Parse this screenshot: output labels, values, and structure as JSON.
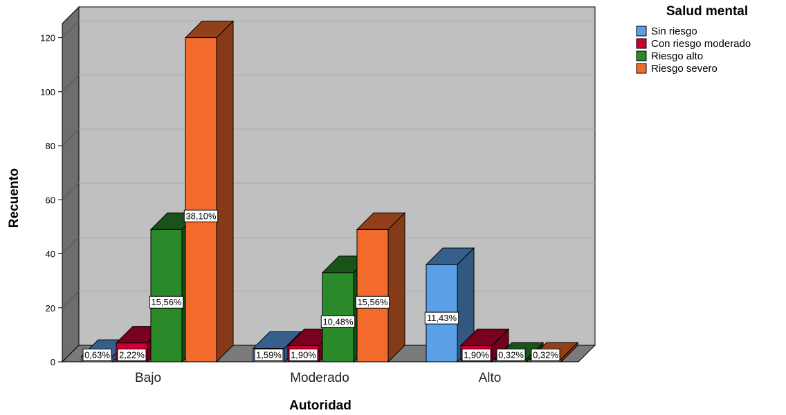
{
  "chart_data": {
    "type": "bar",
    "xlabel": "Autoridad",
    "ylabel": "Recuento",
    "ylim": [
      0,
      125
    ],
    "yticks": [
      0,
      20,
      40,
      60,
      80,
      100,
      120
    ],
    "grid": true,
    "legend": {
      "title": "Salud mental",
      "placement": "right"
    },
    "categories": [
      "Bajo",
      "Moderado",
      "Alto"
    ],
    "series": [
      {
        "name": "Sin riesgo",
        "color": "#5aa0e8",
        "values": [
          2,
          5,
          36
        ],
        "labels": [
          "0,63%",
          "1,59%",
          "11,43%"
        ]
      },
      {
        "name": "Con riesgo moderado",
        "color": "#cc0033",
        "values": [
          7,
          6,
          6
        ],
        "labels": [
          "2,22%",
          "1,90%",
          "1,90%"
        ]
      },
      {
        "name": "Riesgo alto",
        "color": "#2a8a2a",
        "values": [
          49,
          33,
          1
        ],
        "labels": [
          "15,56%",
          "10,48%",
          "0,32%"
        ]
      },
      {
        "name": "Riesgo severo",
        "color": "#f26a2c",
        "values": [
          120,
          49,
          1
        ],
        "labels": [
          "38,10%",
          "15,56%",
          "0,32%"
        ]
      }
    ]
  }
}
